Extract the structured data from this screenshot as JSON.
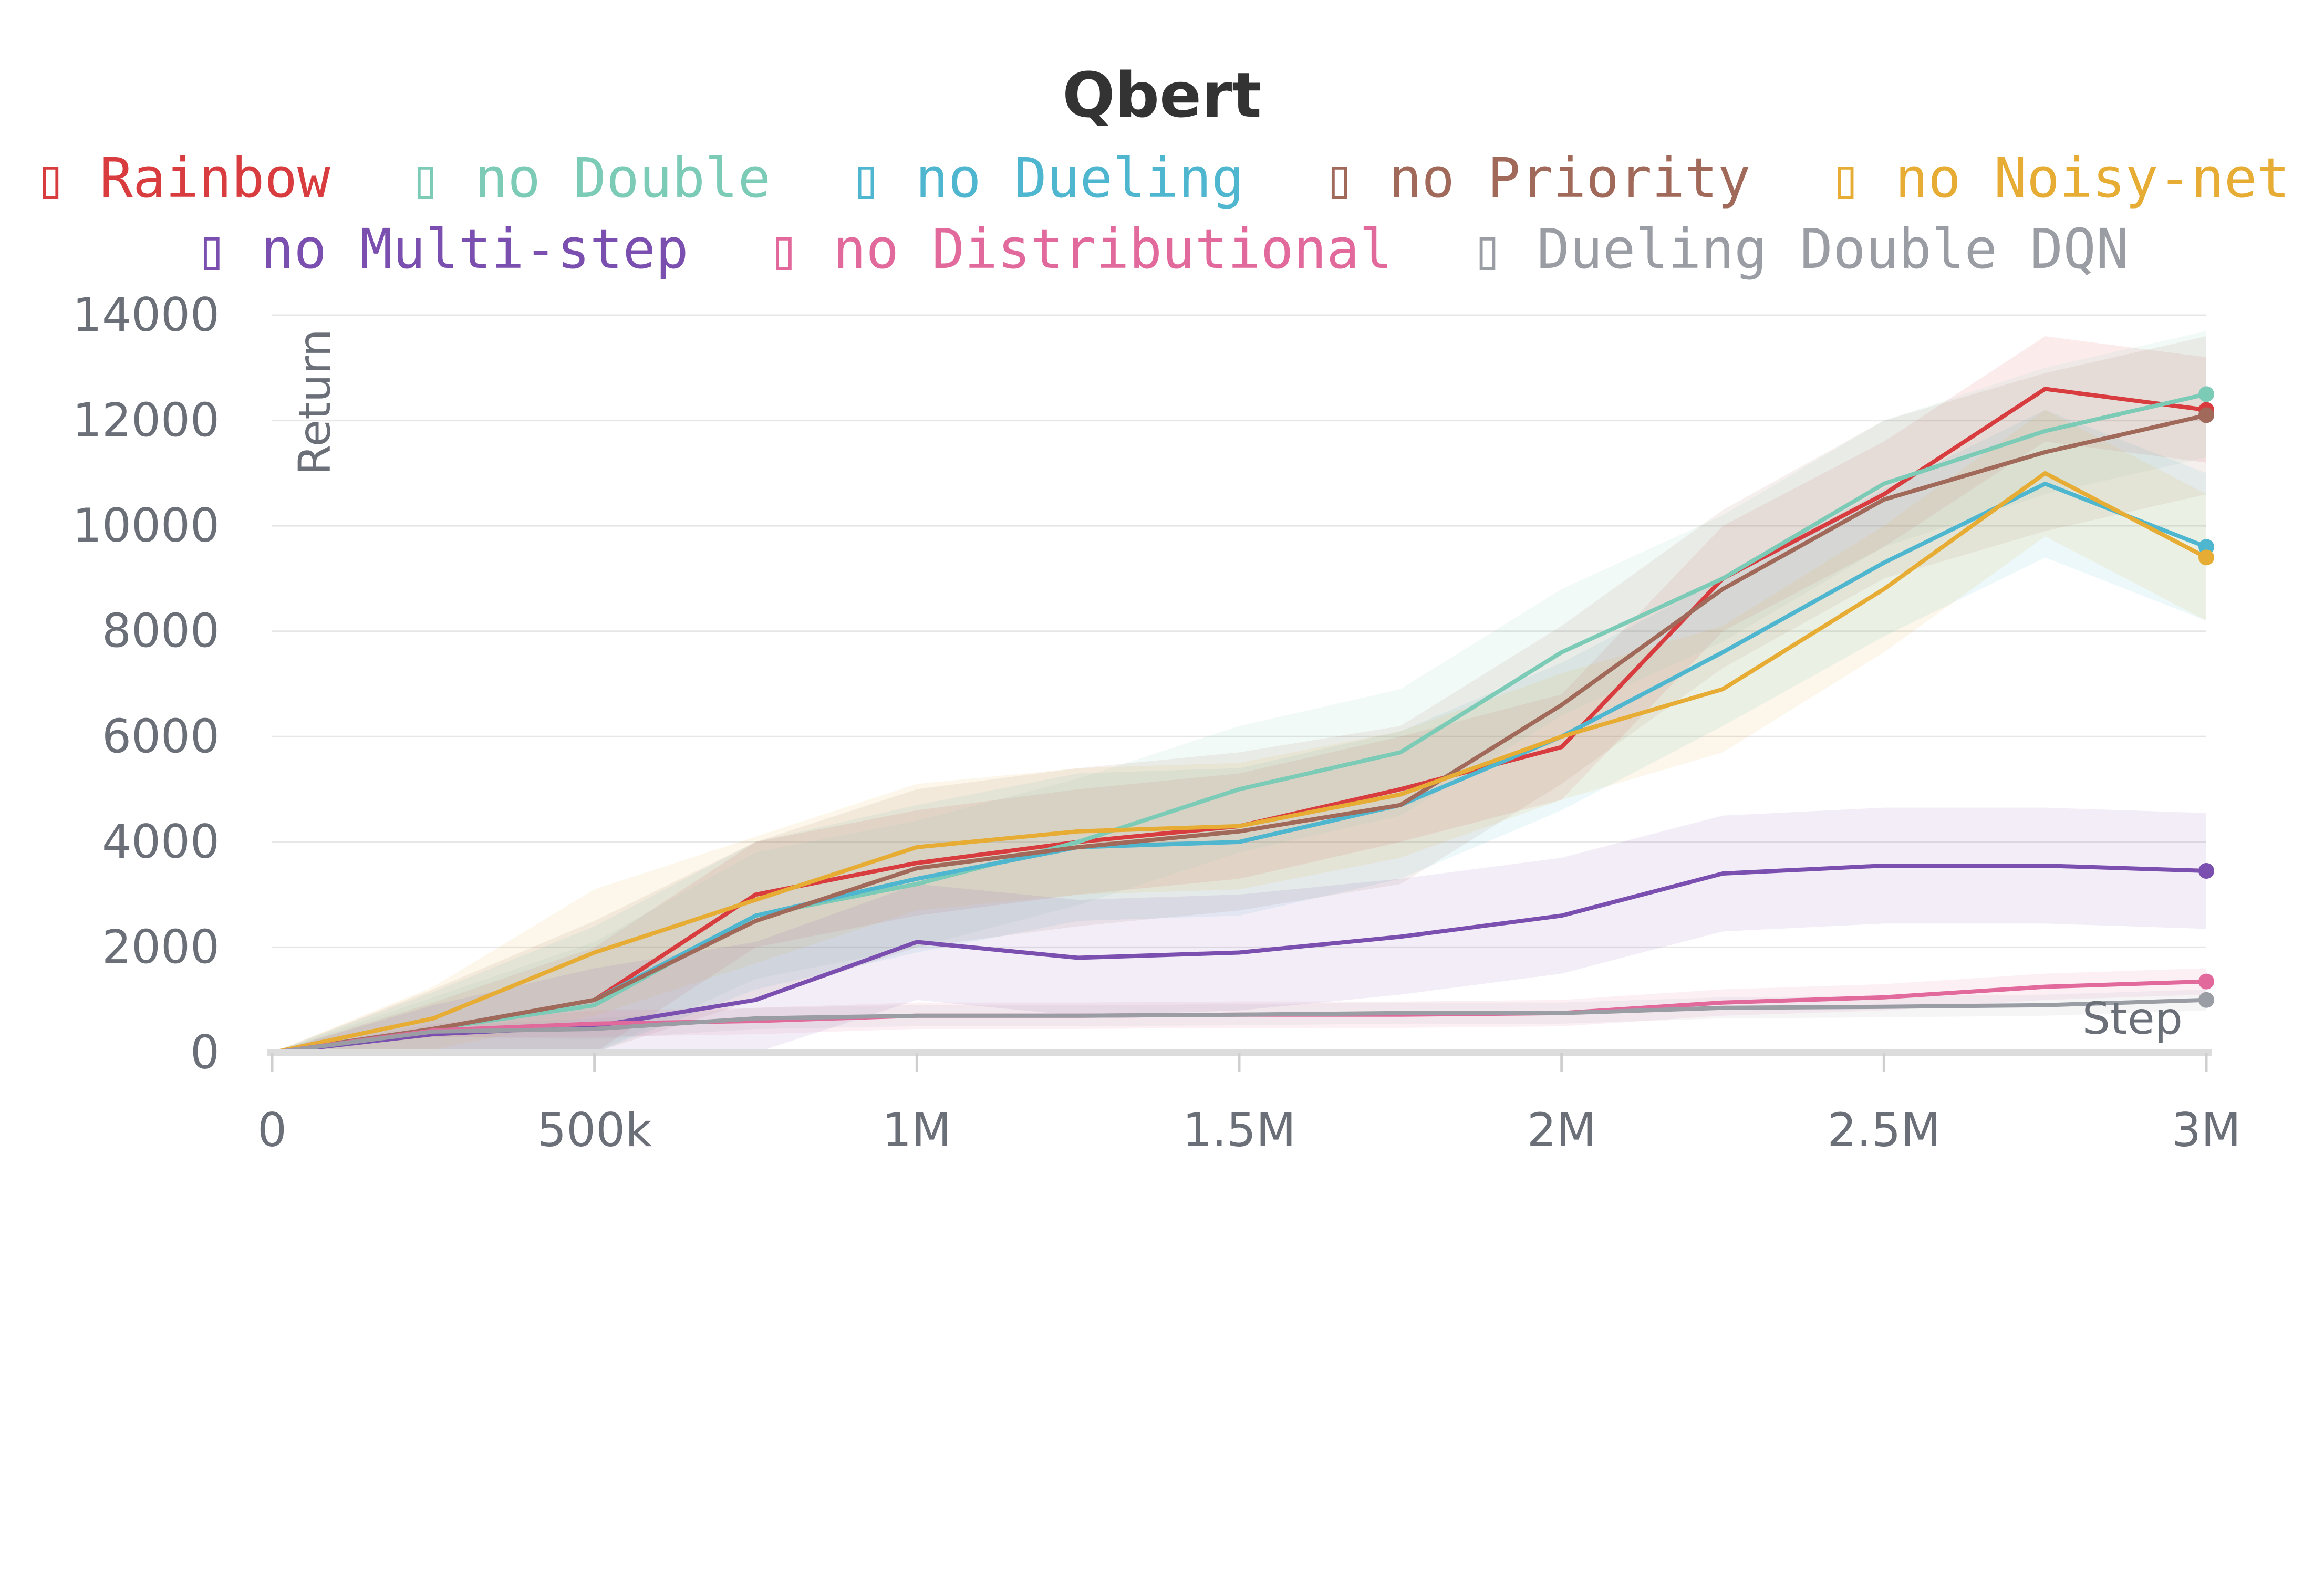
{
  "chart_data": {
    "type": "line",
    "title": "Qbert",
    "xlabel": "Step",
    "ylabel": "Return",
    "xlim": [
      0,
      3000000
    ],
    "ylim": [
      0,
      14000
    ],
    "x_ticks": [
      {
        "value": 0,
        "label": "0"
      },
      {
        "value": 500000,
        "label": "500k"
      },
      {
        "value": 1000000,
        "label": "1M"
      },
      {
        "value": 1500000,
        "label": "1.5M"
      },
      {
        "value": 2000000,
        "label": "2M"
      },
      {
        "value": 2500000,
        "label": "2.5M"
      },
      {
        "value": 3000000,
        "label": "3M"
      }
    ],
    "y_ticks": [
      {
        "value": 0,
        "label": "0"
      },
      {
        "value": 2000,
        "label": "2000"
      },
      {
        "value": 4000,
        "label": "4000"
      },
      {
        "value": 6000,
        "label": "6000"
      },
      {
        "value": 8000,
        "label": "8000"
      },
      {
        "value": 10000,
        "label": "10000"
      },
      {
        "value": 12000,
        "label": "12000"
      },
      {
        "value": 14000,
        "label": "14000"
      }
    ],
    "grid": true,
    "legend_position": "top",
    "legend_marker": "▯",
    "x": [
      0,
      250000,
      500000,
      750000,
      1000000,
      1250000,
      1500000,
      1750000,
      2000000,
      2250000,
      2500000,
      2750000,
      3000000
    ],
    "series": [
      {
        "name": "Rainbow",
        "color": "#d83c3f",
        "band": 1000,
        "values": [
          0,
          450,
          1000,
          3000,
          3600,
          4000,
          4300,
          5000,
          5800,
          9000,
          10600,
          12600,
          12200
        ]
      },
      {
        "name": "no Double",
        "color": "#7ccbb7",
        "band": 1200,
        "values": [
          0,
          450,
          900,
          2600,
          3200,
          4000,
          5000,
          5700,
          7600,
          9000,
          10800,
          11800,
          12500
        ]
      },
      {
        "name": "no Dueling",
        "color": "#4fb6d0",
        "band": 1400,
        "values": [
          0,
          450,
          1000,
          2600,
          3300,
          3900,
          4000,
          4700,
          6000,
          7600,
          9300,
          10800,
          9600
        ]
      },
      {
        "name": "no Priority",
        "color": "#a0695a",
        "band": 1500,
        "values": [
          0,
          450,
          1000,
          2500,
          3500,
          3900,
          4200,
          4700,
          6600,
          8800,
          10500,
          11400,
          12100
        ]
      },
      {
        "name": "no Noisy-net",
        "color": "#e6ac33",
        "band": 1200,
        "values": [
          0,
          650,
          1900,
          2900,
          3900,
          4200,
          4300,
          4900,
          6000,
          6900,
          8800,
          11000,
          9400
        ]
      },
      {
        "name": "no Multi-step",
        "color": "#7b4fb0",
        "band": 1100,
        "values": [
          0,
          350,
          500,
          1000,
          2100,
          1800,
          1900,
          2200,
          2600,
          3400,
          3550,
          3550,
          3450
        ]
      },
      {
        "name": "no Distributional",
        "color": "#e2699b",
        "band": 250,
        "values": [
          0,
          420,
          550,
          600,
          700,
          700,
          720,
          720,
          750,
          950,
          1050,
          1250,
          1350
        ]
      },
      {
        "name": "Dueling Double DQN",
        "color": "#9a9ea4",
        "band": 200,
        "values": [
          0,
          400,
          450,
          650,
          700,
          700,
          720,
          750,
          750,
          850,
          870,
          900,
          1000
        ]
      }
    ]
  }
}
